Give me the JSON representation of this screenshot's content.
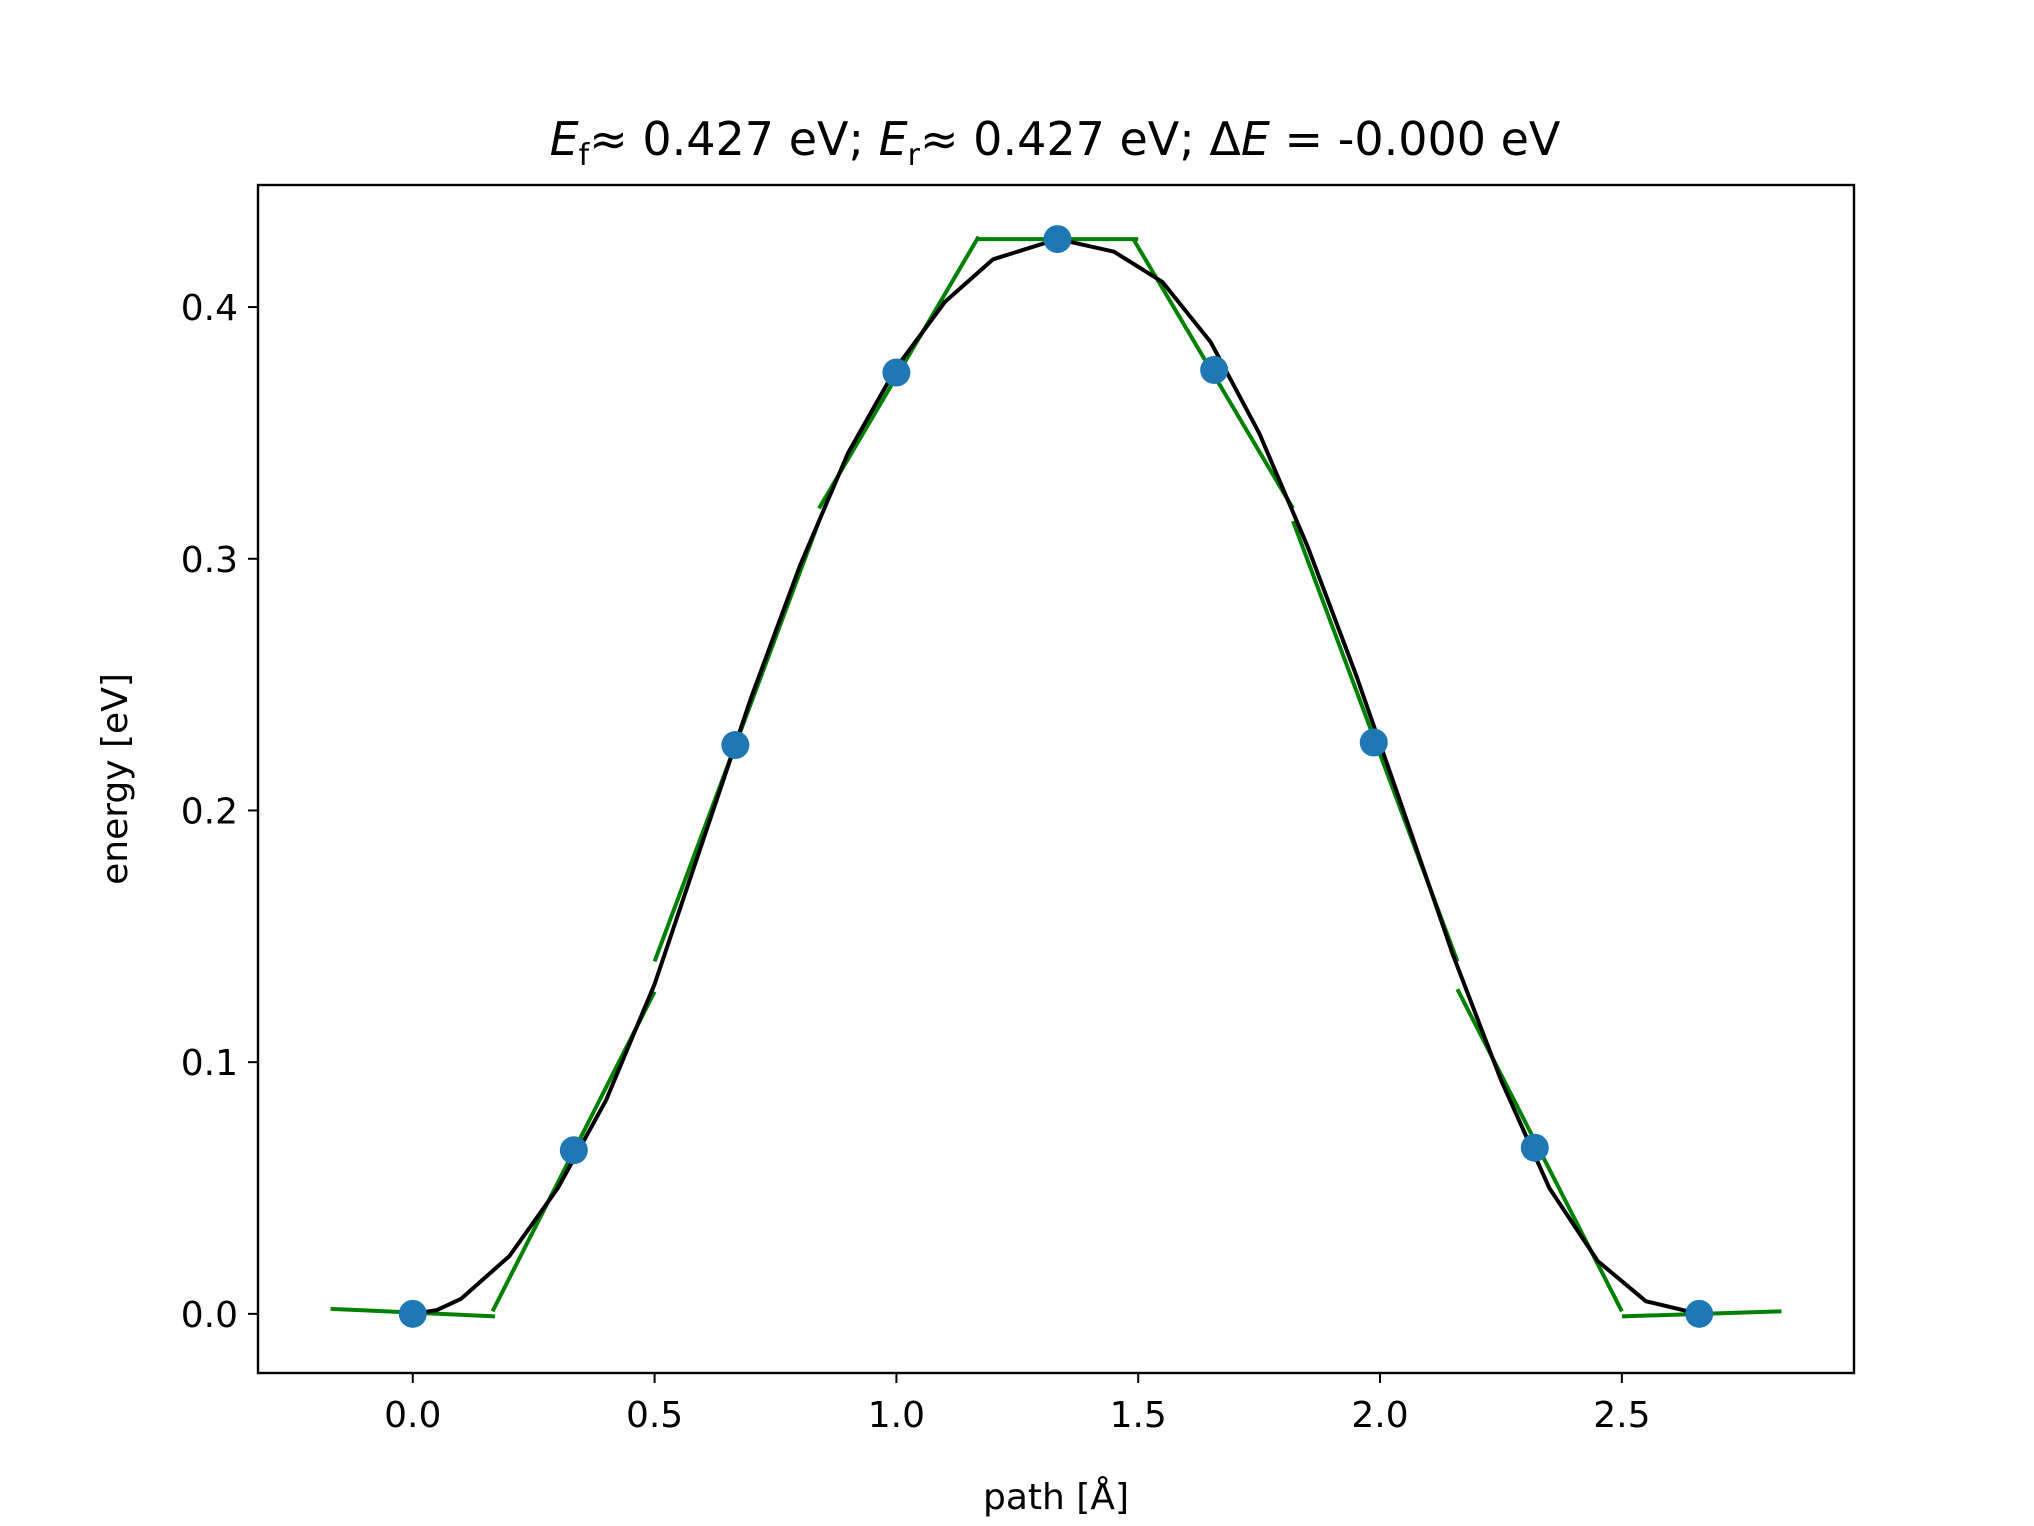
{
  "chart_data": {
    "type": "line",
    "title": {
      "ef_symbol": "E",
      "ef_sub": "f",
      "ef_value": "≈  0.427 eV; ",
      "er_symbol": "E",
      "er_sub": "r",
      "er_value": "≈  0.427 eV; ",
      "de_delta": "Δ",
      "de_symbol": "E",
      "de_value": " = -0.000 eV"
    },
    "xlabel": "path [Å]",
    "ylabel": "energy [eV]",
    "xlim": [
      -0.32,
      2.98
    ],
    "ylim": [
      -0.0235,
      0.4485
    ],
    "xticks": [
      0.0,
      0.5,
      1.0,
      1.5,
      2.0,
      2.5
    ],
    "xtick_labels": [
      "0.0",
      "0.5",
      "1.0",
      "1.5",
      "2.0",
      "2.5"
    ],
    "yticks": [
      0.0,
      0.1,
      0.2,
      0.3,
      0.4
    ],
    "ytick_labels": [
      "0.0",
      "0.1",
      "0.2",
      "0.3",
      "0.4"
    ],
    "grid": false,
    "colors": {
      "points": "#1f77b4",
      "tangents": "#008000",
      "fit": "#000000"
    },
    "series": [
      {
        "kind": "scatter",
        "x": [
          0.0,
          0.333,
          0.667,
          1.0,
          1.333,
          1.657,
          1.987,
          2.32,
          2.66
        ],
        "y": [
          0.0,
          0.065,
          0.226,
          0.374,
          0.427,
          0.375,
          0.227,
          0.066,
          0.0
        ]
      },
      {
        "kind": "line",
        "points": [
          [
            0.0,
            0.0
          ],
          [
            0.05,
            0.0015
          ],
          [
            0.1,
            0.006
          ],
          [
            0.2,
            0.023
          ],
          [
            0.3,
            0.05
          ],
          [
            0.4,
            0.085
          ],
          [
            0.5,
            0.131
          ],
          [
            0.6,
            0.188
          ],
          [
            0.7,
            0.245
          ],
          [
            0.8,
            0.297
          ],
          [
            0.9,
            0.342
          ],
          [
            1.0,
            0.376
          ],
          [
            1.1,
            0.402
          ],
          [
            1.2,
            0.419
          ],
          [
            1.333,
            0.427
          ],
          [
            1.45,
            0.422
          ],
          [
            1.55,
            0.41
          ],
          [
            1.65,
            0.386
          ],
          [
            1.75,
            0.35
          ],
          [
            1.85,
            0.305
          ],
          [
            1.95,
            0.254
          ],
          [
            2.05,
            0.199
          ],
          [
            2.15,
            0.143
          ],
          [
            2.25,
            0.093
          ],
          [
            2.35,
            0.05
          ],
          [
            2.45,
            0.021
          ],
          [
            2.55,
            0.005
          ],
          [
            2.66,
            0.0
          ]
        ]
      },
      {
        "kind": "segments",
        "segments": [
          [
            [
              -0.17,
              0.002
            ],
            [
              0.17,
              -0.001
            ]
          ],
          [
            [
              0.165,
              0.001
            ],
            [
              0.5,
              0.128
            ]
          ],
          [
            [
              0.5,
              0.14
            ],
            [
              0.84,
              0.315
            ]
          ],
          [
            [
              0.84,
              0.32
            ],
            [
              1.17,
              0.428
            ]
          ],
          [
            [
              1.17,
              0.427
            ],
            [
              1.5,
              0.427
            ]
          ],
          [
            [
              1.49,
              0.427
            ],
            [
              1.82,
              0.32
            ]
          ],
          [
            [
              1.82,
              0.315
            ],
            [
              2.16,
              0.14
            ]
          ],
          [
            [
              2.16,
              0.129
            ],
            [
              2.5,
              0.001
            ]
          ],
          [
            [
              2.5,
              -0.001
            ],
            [
              2.83,
              0.001
            ]
          ]
        ]
      }
    ]
  }
}
